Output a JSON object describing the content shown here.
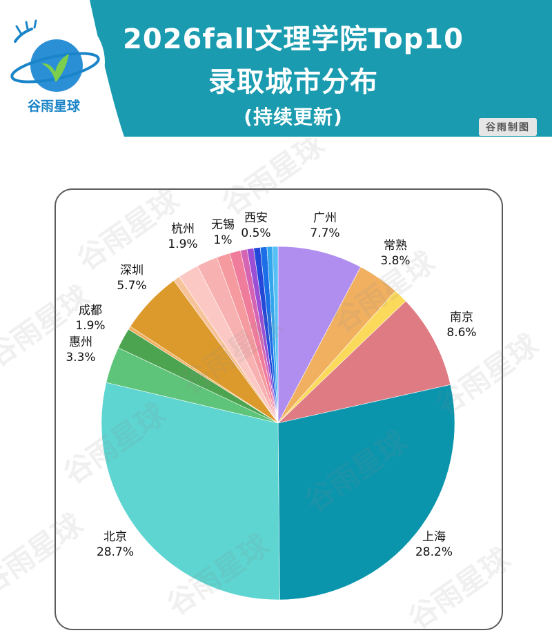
{
  "header": {
    "title_line1": "2026fall文理学院Top10",
    "title_line2": "录取城市分布",
    "title_line3": "(持续更新)",
    "maker_badge": "谷雨制图",
    "logo_text": "谷雨星球",
    "banner_color": "#1a9baf"
  },
  "watermark": "谷雨星球",
  "chart_data": {
    "type": "pie",
    "start": "12 o'clock",
    "direction": "clockwise",
    "slices": [
      {
        "name": "广州",
        "value": 7.7,
        "color": "#b08ef0",
        "label": "广州\n7.7%"
      },
      {
        "name": "常熟",
        "value": 3.8,
        "color": "#f0b060",
        "label": "常熟\n3.8%"
      },
      {
        "name": "",
        "value": 1.3,
        "color": "#fbd95a",
        "label": ""
      },
      {
        "name": "南京",
        "value": 8.6,
        "color": "#df7b82",
        "label": "南京\n8.6%"
      },
      {
        "name": "上海",
        "value": 28.2,
        "color": "#0a95ad",
        "label": "上海\n28.2%"
      },
      {
        "name": "北京",
        "value": 28.7,
        "color": "#5ed5d0",
        "label": "北京\n28.7%"
      },
      {
        "name": "惠州",
        "value": 3.3,
        "color": "#5dc47a",
        "label": "惠州\n3.3%"
      },
      {
        "name": "成都",
        "value": 1.9,
        "color": "#4da450",
        "label": "成都\n1.9%"
      },
      {
        "name": "",
        "value": 0.3,
        "color": "#f0b060",
        "label": ""
      },
      {
        "name": "深圳",
        "value": 5.7,
        "color": "#dd9a2c",
        "label": "深圳\n5.7%"
      },
      {
        "name": "",
        "value": 0.6,
        "color": "#f7c39a",
        "label": ""
      },
      {
        "name": "杭州",
        "value": 1.9,
        "color": "#fbc8c4",
        "label": "杭州\n1.9%"
      },
      {
        "name": "",
        "value": 1.9,
        "color": "#f8b1b1",
        "label": ""
      },
      {
        "name": "",
        "value": 1.2,
        "color": "#f59a9e",
        "label": ""
      },
      {
        "name": "无锡",
        "value": 1.0,
        "color": "#f07c9c",
        "label": "无锡\n1%"
      },
      {
        "name": "",
        "value": 0.6,
        "color": "#d565b3",
        "label": ""
      },
      {
        "name": "",
        "value": 0.6,
        "color": "#9a4fd4",
        "label": ""
      },
      {
        "name": "",
        "value": 0.6,
        "color": "#2448d8",
        "label": ""
      },
      {
        "name": "",
        "value": 0.6,
        "color": "#1c6ee6",
        "label": ""
      },
      {
        "name": "西安",
        "value": 0.5,
        "color": "#34a6ec",
        "label": "西安\n0.5%"
      },
      {
        "name": "",
        "value": 0.5,
        "color": "#56c0f4",
        "label": ""
      }
    ]
  }
}
